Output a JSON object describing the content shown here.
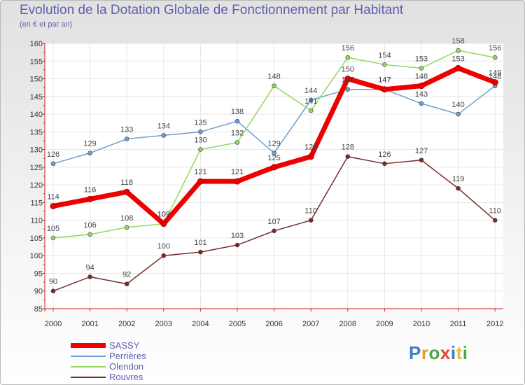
{
  "page": {
    "title": "Evolution de la Dotation Globale de Fonctionnement par Habitant",
    "subtitle": "(en € et par an)"
  },
  "logo": {
    "text": "Proxiti",
    "colors": [
      "#3a7ec8",
      "#e89a2a",
      "#4aa84a",
      "#d94a3a",
      "#3a7ec8",
      "#e8c02a",
      "#4aa84a"
    ]
  },
  "chart_data": {
    "type": "line",
    "title": "Evolution de la Dotation Globale de Fonctionnement par Habitant",
    "subtitle": "(en € et par an)",
    "xlabel": "",
    "ylabel": "",
    "categories": [
      "2000",
      "2001",
      "2002",
      "2003",
      "2004",
      "2005",
      "2006",
      "2007",
      "2008",
      "2009",
      "2010",
      "2011",
      "2012"
    ],
    "ylim": [
      85,
      160
    ],
    "yticks": [
      85,
      90,
      95,
      100,
      105,
      110,
      115,
      120,
      125,
      130,
      135,
      140,
      145,
      150,
      155,
      160
    ],
    "grid": true,
    "legend": "bottom-left",
    "series": [
      {
        "name": "Perrières",
        "color": "#6a9fd0",
        "values": [
          126,
          129,
          133,
          134,
          135,
          138,
          129,
          144,
          147,
          147,
          143,
          140,
          148
        ],
        "labels": [
          "126",
          "129",
          "133",
          "134",
          "135",
          "138",
          "129",
          "144",
          "147",
          "147",
          "143",
          "140",
          "148"
        ]
      },
      {
        "name": "Olendon",
        "color": "#90d860",
        "values": [
          105,
          106,
          108,
          109,
          130,
          132,
          148,
          141,
          156,
          154,
          153,
          158,
          156
        ],
        "labels": [
          "105",
          "106",
          "108",
          "109",
          "130",
          "132",
          "148",
          "141",
          "156",
          "154",
          "153",
          "158",
          "156"
        ]
      },
      {
        "name": "Rouvres",
        "color": "#7b2a2a",
        "values": [
          90,
          94,
          92,
          100,
          101,
          103,
          107,
          110,
          128,
          126,
          127,
          119,
          110
        ],
        "labels": [
          "90",
          "94",
          "92",
          "100",
          "101",
          "103",
          "107",
          "110",
          "128",
          "126",
          "127",
          "119",
          "110"
        ]
      },
      {
        "name": "SASSY",
        "color": "#ee0000",
        "values": [
          114,
          116,
          118,
          109,
          121,
          121,
          125,
          128,
          150,
          147,
          148,
          153,
          149
        ],
        "labels": [
          "114",
          "116",
          "118",
          "109",
          "121",
          "121",
          "125",
          "128",
          "150",
          "147",
          "148",
          "153",
          "149"
        ]
      }
    ],
    "legend_entries": [
      "SASSY",
      "Perrières",
      "Olendon",
      "Rouvres"
    ]
  }
}
